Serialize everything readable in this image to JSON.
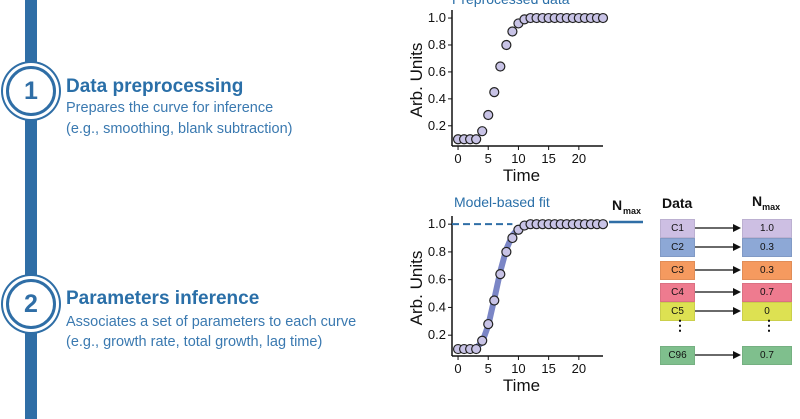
{
  "colors": {
    "rail": "#2f6ea6",
    "title": "#2a6fa8",
    "point_fill": "#c8c3e6",
    "fit_line": "#7b86c6",
    "dashed": "#2f6ea6"
  },
  "step1": {
    "number": "1",
    "title": "Data preprocessing",
    "desc1": "Prepares the curve for inference",
    "desc2": "(e.g., smoothing, blank subtraction)"
  },
  "step2": {
    "number": "2",
    "title": "Parameters inference",
    "desc1": "Associates a set of parameters to each curve",
    "desc2": "(e.g., growth rate, total growth, lag time)"
  },
  "chart_data": [
    {
      "type": "scatter",
      "title": "Preprocessed data",
      "xlabel": "Time",
      "ylabel": "Arb. Units",
      "xlim": [
        -1,
        24
      ],
      "ylim": [
        0.05,
        1.03
      ],
      "xticks": [
        "0",
        "5",
        "10",
        "15",
        "20"
      ],
      "yticks": [
        "0.2",
        "0.4",
        "0.6",
        "0.8",
        "1.0"
      ],
      "x": [
        0,
        1,
        2,
        3,
        4,
        5,
        6,
        7,
        8,
        9,
        10,
        11,
        12,
        13,
        14,
        15,
        16,
        17,
        18,
        19,
        20,
        21,
        22,
        23,
        24
      ],
      "y": [
        0.1,
        0.1,
        0.1,
        0.1,
        0.16,
        0.28,
        0.45,
        0.64,
        0.8,
        0.9,
        0.96,
        0.99,
        1.0,
        1.0,
        1.0,
        1.0,
        1.0,
        1.0,
        1.0,
        1.0,
        1.0,
        1.0,
        1.0,
        1.0,
        1.0
      ]
    },
    {
      "type": "scatter",
      "title": "Model-based fit",
      "xlabel": "Time",
      "ylabel": "Arb. Units",
      "annotation": "N",
      "annotation_sub": "max",
      "xlim": [
        -1,
        24
      ],
      "ylim": [
        0.05,
        1.03
      ],
      "xticks": [
        "0",
        "5",
        "10",
        "15",
        "20"
      ],
      "yticks": [
        "0.2",
        "0.4",
        "0.6",
        "0.8",
        "1.0"
      ],
      "x": [
        0,
        1,
        2,
        3,
        4,
        5,
        6,
        7,
        8,
        9,
        10,
        11,
        12,
        13,
        14,
        15,
        16,
        17,
        18,
        19,
        20,
        21,
        22,
        23,
        24
      ],
      "y": [
        0.1,
        0.1,
        0.1,
        0.1,
        0.16,
        0.28,
        0.45,
        0.64,
        0.8,
        0.9,
        0.96,
        0.99,
        1.0,
        1.0,
        1.0,
        1.0,
        1.0,
        1.0,
        1.0,
        1.0,
        1.0,
        1.0,
        1.0,
        1.0,
        1.0
      ],
      "fit_y": [
        0.1,
        0.1,
        0.1,
        0.11,
        0.15,
        0.27,
        0.46,
        0.66,
        0.82,
        0.92,
        0.97,
        0.99,
        1.0,
        1.0,
        1.0,
        1.0,
        1.0,
        1.0,
        1.0,
        1.0,
        1.0,
        1.0,
        1.0,
        1.0,
        1.0
      ],
      "nmax": 1.0
    }
  ],
  "table": {
    "data_header": "Data",
    "nmax_header": "N",
    "nmax_header_sub": "max",
    "rows": [
      {
        "id": "C1",
        "value": "1.0",
        "color": "#cdbfe3"
      },
      {
        "id": "C2",
        "value": "0.3",
        "color": "#8da8d6"
      },
      {
        "id": "C3",
        "value": "0.3",
        "color": "#f59a5f"
      },
      {
        "id": "C4",
        "value": "0.7",
        "color": "#ee7b8f"
      },
      {
        "id": "C5",
        "value": "0",
        "color": "#dde152"
      },
      {
        "id": "C96",
        "value": "0.7",
        "color": "#7fbf8d"
      }
    ],
    "dots": "⋮"
  }
}
